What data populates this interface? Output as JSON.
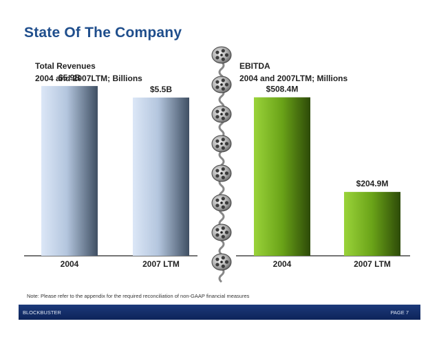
{
  "title": "State Of The Company",
  "note": "Note: Please refer to the appendix for the required reconciliation of non-GAAP financial measures",
  "footer": {
    "left": "BLOCKBUSTER",
    "right": "PAGE 7"
  },
  "colors": {
    "title": "#1f4e8c",
    "footer": "#0d245a",
    "revenue_bar": "#8fa5c2",
    "ebitda_bar": "#6aa318"
  },
  "decoration": "film-reel-divider",
  "chart_data": [
    {
      "type": "bar",
      "title": "Total Revenues",
      "subtitle": "2004 and 2007LTM; Billions",
      "categories": [
        "2004",
        "2007 LTM"
      ],
      "values": [
        5.9,
        5.5
      ],
      "labels": [
        "$5.9B",
        "$5.5B"
      ],
      "ylim": [
        0,
        6.5
      ],
      "grid": false
    },
    {
      "type": "bar",
      "title": "EBITDA",
      "subtitle": "2004 and 2007LTM; Millions",
      "categories": [
        "2004",
        "2007 LTM"
      ],
      "values": [
        508.4,
        204.9
      ],
      "labels": [
        "$508.4M",
        "$204.9M"
      ],
      "ylim": [
        0,
        600
      ],
      "grid": false
    }
  ]
}
